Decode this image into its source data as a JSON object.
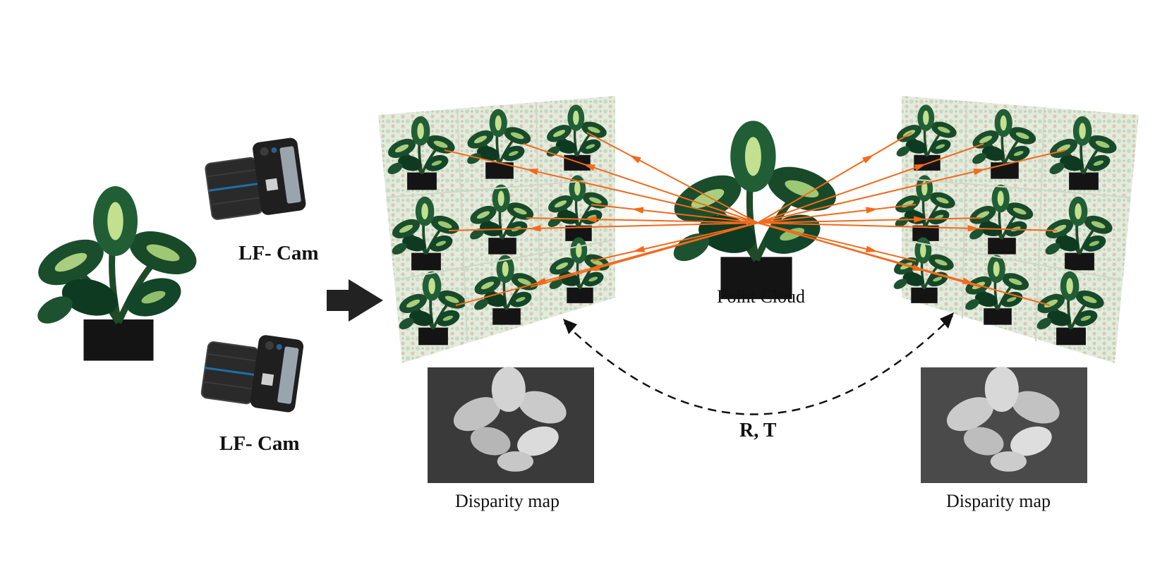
{
  "labels": {
    "camera_top": "LF- Cam",
    "camera_bottom": "LF- Cam",
    "point_cloud": "Point Cloud",
    "transform": "R, T",
    "disparity_left": "Disparity map",
    "disparity_right": "Disparity map"
  },
  "colors": {
    "ray": "#f26a1b",
    "leaf_dark": "#0f3a22",
    "leaf_mid": "#2c6e3c",
    "leaf_light": "#b9d98a",
    "background_tile": "#dfe8d8",
    "arrow": "#222222"
  },
  "icons": [
    "camera-icon",
    "plant-icon",
    "process-arrow-icon"
  ]
}
